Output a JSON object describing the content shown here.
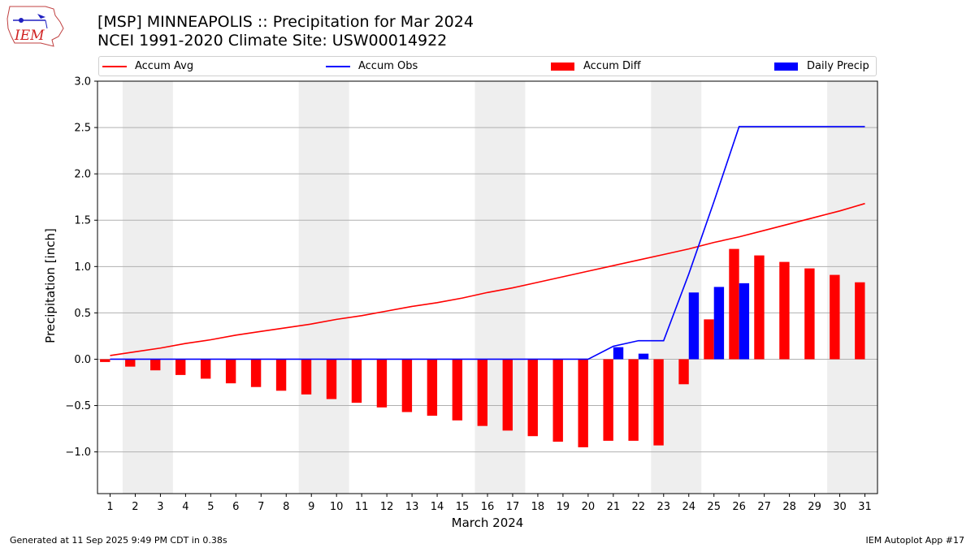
{
  "header": {
    "logo_text": "IEM",
    "title_line1": "[MSP] MINNEAPOLIS :: Precipitation for Mar 2024",
    "title_line2": "NCEI 1991-2020 Climate Site: USW00014922"
  },
  "legend": {
    "items": [
      {
        "label": "Accum Avg",
        "kind": "line",
        "color": "#ff0000"
      },
      {
        "label": "Accum Obs",
        "kind": "line",
        "color": "#0000ff"
      },
      {
        "label": "Accum Diff",
        "kind": "box",
        "color": "#ff0000"
      },
      {
        "label": "Daily Precip",
        "kind": "box",
        "color": "#0000ff"
      }
    ]
  },
  "footer": {
    "left": "Generated at 11 Sep 2025 9:49 PM CDT in 0.38s",
    "right": "IEM Autoplot App #17"
  },
  "chart_data": {
    "type": "bar",
    "title": "[MSP] MINNEAPOLIS :: Precipitation for Mar 2024",
    "xlabel": "March 2024",
    "ylabel": "Precipitation [inch]",
    "ylim": [
      -1.45,
      3.0
    ],
    "yticks": [
      -1.0,
      -0.5,
      0.0,
      0.5,
      1.0,
      1.5,
      2.0,
      2.5,
      3.0
    ],
    "ytick_labels": [
      "−1.0",
      "−0.5",
      "0.0",
      "0.5",
      "1.0",
      "1.5",
      "2.0",
      "2.5",
      "3.0"
    ],
    "grid": true,
    "weekend_shading": [
      [
        2,
        3
      ],
      [
        9,
        10
      ],
      [
        16,
        17
      ],
      [
        23,
        24
      ],
      [
        30,
        31
      ]
    ],
    "days": [
      1,
      2,
      3,
      4,
      5,
      6,
      7,
      8,
      9,
      10,
      11,
      12,
      13,
      14,
      15,
      16,
      17,
      18,
      19,
      20,
      21,
      22,
      23,
      24,
      25,
      26,
      27,
      28,
      29,
      30,
      31
    ],
    "series": [
      {
        "name": "Accum Avg",
        "kind": "line",
        "color": "#ff0000",
        "values": [
          0.04,
          0.08,
          0.12,
          0.17,
          0.21,
          0.26,
          0.3,
          0.34,
          0.38,
          0.43,
          0.47,
          0.52,
          0.57,
          0.61,
          0.66,
          0.72,
          0.77,
          0.83,
          0.89,
          0.95,
          1.01,
          1.07,
          1.13,
          1.19,
          1.26,
          1.32,
          1.39,
          1.46,
          1.53,
          1.6,
          1.68
        ]
      },
      {
        "name": "Accum Obs",
        "kind": "line",
        "color": "#0000ff",
        "values": [
          0,
          0,
          0,
          0,
          0,
          0,
          0,
          0,
          0,
          0,
          0,
          0,
          0,
          0,
          0,
          0,
          0,
          0,
          0,
          0,
          0.14,
          0.2,
          0.2,
          0.92,
          1.7,
          2.51,
          2.51,
          2.51,
          2.51,
          2.51,
          2.51
        ]
      },
      {
        "name": "Accum Diff",
        "kind": "bar",
        "color": "#ff0000",
        "values": [
          -0.03,
          -0.08,
          -0.12,
          -0.17,
          -0.21,
          -0.26,
          -0.3,
          -0.34,
          -0.38,
          -0.43,
          -0.47,
          -0.52,
          -0.57,
          -0.61,
          -0.66,
          -0.72,
          -0.77,
          -0.83,
          -0.89,
          -0.95,
          -0.88,
          -0.88,
          -0.93,
          -0.27,
          0.43,
          1.19,
          1.12,
          1.05,
          0.98,
          0.91,
          0.83
        ]
      },
      {
        "name": "Daily Precip",
        "kind": "bar",
        "color": "#0000ff",
        "values": [
          0,
          0,
          0,
          0,
          0,
          0,
          0,
          0,
          0,
          0,
          0,
          0,
          0,
          0,
          0,
          0,
          0,
          0,
          0,
          0,
          0.13,
          0.06,
          0,
          0.72,
          0.78,
          0.82,
          0,
          0,
          0,
          0,
          0
        ]
      }
    ]
  }
}
